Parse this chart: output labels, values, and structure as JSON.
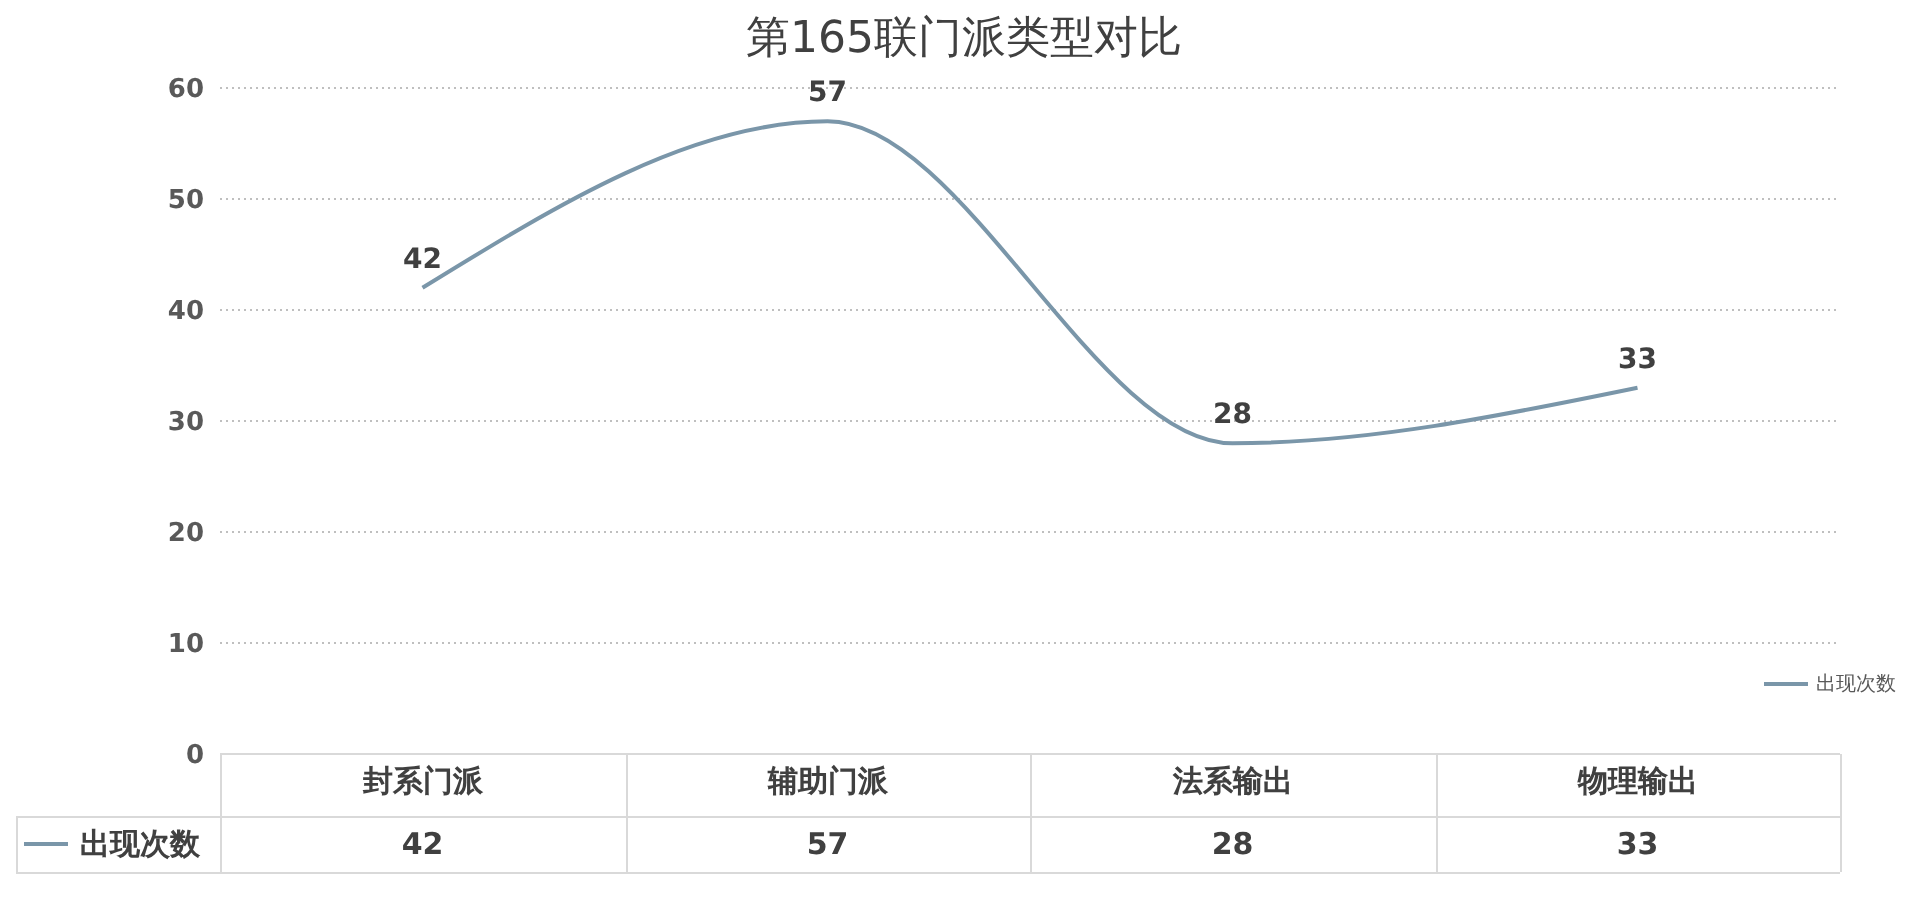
{
  "chart_data": {
    "type": "line",
    "title": "第165联门派类型对比",
    "categories": [
      "封系门派",
      "辅助门派",
      "法系输出",
      "物理输出"
    ],
    "series": [
      {
        "name": "出现次数",
        "color": "#7a96a9",
        "values": [
          42,
          57,
          28,
          33
        ],
        "value_labels": [
          "42",
          "57",
          "28",
          "33"
        ]
      }
    ],
    "annotations": [
      "42",
      "57",
      "28",
      "33"
    ],
    "ylim": [
      0,
      60
    ],
    "yticks": [
      0,
      10,
      20,
      30,
      40,
      50,
      60
    ],
    "grid": "y",
    "legend": "right",
    "data_labels": true,
    "marker": "none"
  }
}
